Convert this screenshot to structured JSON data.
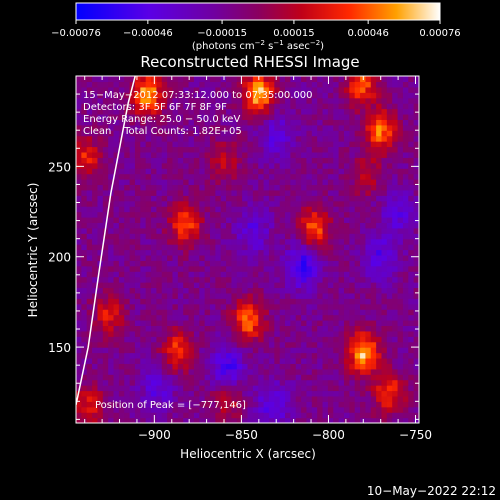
{
  "chart_data": {
    "type": "heatmap",
    "title": "Reconstructed RHESSI Image",
    "xlabel": "Heliocentric X (arcsec)",
    "ylabel": "Heliocentric Y (arcsec)",
    "xlim": [
      -945,
      -748
    ],
    "ylim": [
      108,
      300
    ],
    "x_ticks": [
      -900,
      -850,
      -800,
      -750
    ],
    "x_tick_labels": [
      "−900",
      "−850",
      "−800",
      "−750"
    ],
    "y_ticks": [
      150,
      200,
      250
    ],
    "y_tick_labels": [
      "150",
      "200",
      "250"
    ],
    "colorbar": {
      "range": [
        -0.00076,
        0.00076
      ],
      "ticks": [
        -0.00076,
        -0.00046,
        -0.00015,
        0.00015,
        0.00046,
        0.00076
      ],
      "tick_labels": [
        "−0.00076",
        "−0.00046",
        "−0.00015",
        "0.00015",
        "0.00046",
        "0.00076"
      ],
      "unit_main": "(photons cm",
      "unit_exp1": "−2",
      "unit_mid": " s",
      "unit_exp2": "−1",
      "unit_mid2": " asec",
      "unit_exp3": "−2",
      "unit_end": ")"
    },
    "annotations": {
      "time": "15−May−2012 07:33:12.000 to 07:35:00.000",
      "detectors": "Detectors: 3F 5F 6F 7F 8F 9F",
      "energy": "Energy Range: 25.0 − 50.0 keV",
      "method": "Clean    Total Counts: 1.82E+05",
      "peak": "Position of Peak = [−777,146]"
    },
    "peak": {
      "x": -777,
      "y": 146
    },
    "grid": false,
    "limb_curve": [
      [
        -945,
        118
      ],
      [
        -938,
        150
      ],
      [
        -932,
        190
      ],
      [
        -925,
        235
      ],
      [
        -915,
        285
      ],
      [
        -911,
        300
      ]
    ],
    "hot_sources": [
      {
        "x": -904,
        "y": 290,
        "value": 0.00072
      },
      {
        "x": -840,
        "y": 290,
        "value": 0.00076
      },
      {
        "x": -781,
        "y": 295,
        "value": 0.00055
      },
      {
        "x": -770,
        "y": 270,
        "value": 0.0006
      },
      {
        "x": -940,
        "y": 255,
        "value": 0.00045
      },
      {
        "x": -882,
        "y": 218,
        "value": 0.00055
      },
      {
        "x": -808,
        "y": 216,
        "value": 0.00055
      },
      {
        "x": -778,
        "y": 245,
        "value": 0.0003
      },
      {
        "x": -780,
        "y": 147,
        "value": 0.00076
      },
      {
        "x": -765,
        "y": 125,
        "value": 0.0005
      },
      {
        "x": -846,
        "y": 165,
        "value": 0.0006
      },
      {
        "x": -887,
        "y": 148,
        "value": 0.0005
      },
      {
        "x": -926,
        "y": 168,
        "value": 0.0004
      },
      {
        "x": -938,
        "y": 118,
        "value": 0.0004
      },
      {
        "x": -858,
        "y": 122,
        "value": 0.00035
      },
      {
        "x": -860,
        "y": 253,
        "value": 0.0003
      }
    ],
    "cold_sources": [
      {
        "x": -815,
        "y": 195,
        "value": -0.00045
      },
      {
        "x": -770,
        "y": 200,
        "value": -0.00035
      },
      {
        "x": -843,
        "y": 215,
        "value": -0.0003
      },
      {
        "x": -858,
        "y": 138,
        "value": -0.00045
      },
      {
        "x": -832,
        "y": 118,
        "value": -0.00035
      },
      {
        "x": -898,
        "y": 128,
        "value": -0.0003
      },
      {
        "x": -830,
        "y": 268,
        "value": -0.0003
      },
      {
        "x": -760,
        "y": 225,
        "value": -0.0003
      }
    ]
  },
  "footer": {
    "timestamp": "10−May−2022 22:12"
  }
}
